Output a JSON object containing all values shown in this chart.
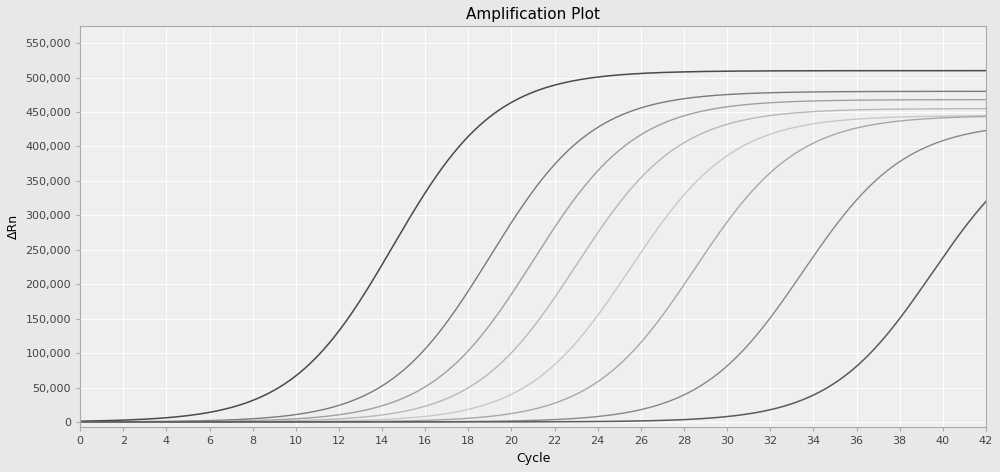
{
  "title": "Amplification Plot",
  "xlabel": "Cycle",
  "ylabel": "ΔRn",
  "xlim": [
    0,
    42
  ],
  "ylim": [
    -8000,
    575000
  ],
  "xticks": [
    0,
    2,
    4,
    6,
    8,
    10,
    12,
    14,
    16,
    18,
    20,
    22,
    24,
    26,
    28,
    30,
    32,
    34,
    36,
    38,
    40,
    42
  ],
  "yticks": [
    0,
    50000,
    100000,
    150000,
    200000,
    250000,
    300000,
    350000,
    400000,
    450000,
    500000,
    550000
  ],
  "ytick_labels": [
    "0",
    "50,000",
    "100,000",
    "150,000",
    "200,000",
    "250,000",
    "300,000",
    "350,000",
    "400,000",
    "450,000",
    "500,000",
    "550,000"
  ],
  "fig_bg_color": "#e8e8e8",
  "plot_bg_color": "#f0efee",
  "grid_color": "#ffffff",
  "grid_lw": 0.7,
  "curves": [
    {
      "midpoint": 14.5,
      "plateau": 510000,
      "steepness": 0.42,
      "color": "#4a4a4a",
      "lw": 1.1
    },
    {
      "midpoint": 19.0,
      "plateau": 480000,
      "steepness": 0.42,
      "color": "#7a7a7a",
      "lw": 1.0
    },
    {
      "midpoint": 21.0,
      "plateau": 468000,
      "steepness": 0.42,
      "color": "#a0a0a0",
      "lw": 1.0
    },
    {
      "midpoint": 23.0,
      "plateau": 455000,
      "steepness": 0.42,
      "color": "#b8b8b8",
      "lw": 1.0
    },
    {
      "midpoint": 25.5,
      "plateau": 445000,
      "steepness": 0.42,
      "color": "#c8c8c8",
      "lw": 1.0
    },
    {
      "midpoint": 28.5,
      "plateau": 445000,
      "steepness": 0.42,
      "color": "#a8a8a8",
      "lw": 1.0
    },
    {
      "midpoint": 33.5,
      "plateau": 435000,
      "steepness": 0.42,
      "color": "#888888",
      "lw": 1.0
    },
    {
      "midpoint": 39.5,
      "plateau": 432000,
      "steepness": 0.42,
      "color": "#5a5a5a",
      "lw": 1.1
    }
  ],
  "title_fontsize": 11,
  "axis_label_fontsize": 9,
  "tick_fontsize": 8,
  "spine_color": "#aaaaaa",
  "tick_color": "#aaaaaa",
  "tick_label_color": "#444444"
}
